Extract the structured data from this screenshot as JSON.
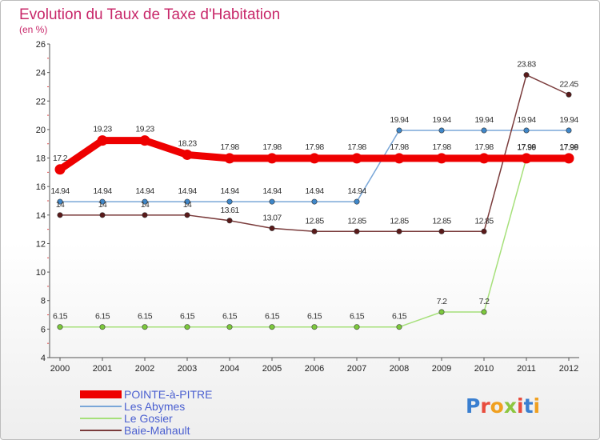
{
  "title": "Evolution du Taux de Taxe d'Habitation",
  "subtitle": "(en %)",
  "logo": {
    "text": "Proxiti",
    "letters": [
      {
        "ch": "P",
        "color": "#3a7fd0"
      },
      {
        "ch": "r",
        "color": "#e84c3d"
      },
      {
        "ch": "o",
        "color": "#f0a020"
      },
      {
        "ch": "x",
        "color": "#8cc63f"
      },
      {
        "ch": "i",
        "color": "#e84c3d"
      },
      {
        "ch": "t",
        "color": "#3a7fd0"
      },
      {
        "ch": "i",
        "color": "#f0a020"
      }
    ]
  },
  "chart_data": {
    "type": "line",
    "title": "Evolution du Taux de Taxe d'Habitation",
    "ylabel": "(en %)",
    "xlabel": "",
    "ylim": [
      4,
      26
    ],
    "yticks": [
      4,
      6,
      8,
      10,
      12,
      14,
      16,
      18,
      20,
      22,
      24,
      26
    ],
    "x": [
      "2000",
      "2001",
      "2002",
      "2003",
      "2004",
      "2005",
      "2006",
      "2007",
      "2008",
      "2009",
      "2010",
      "2011",
      "2012"
    ],
    "grid": "none",
    "legend_position": "bottom-left",
    "series": [
      {
        "name": "Les Abymes",
        "color": "#7aa7d8",
        "marker": "#3f87c9",
        "width": 1.5,
        "values": [
          14.94,
          14.94,
          14.94,
          14.94,
          14.94,
          14.94,
          14.94,
          14.94,
          19.94,
          19.94,
          19.94,
          19.94,
          19.94
        ],
        "labels": [
          "14.94",
          "14.94",
          "14.94",
          "14.94",
          "14.94",
          "14.94",
          "14.94",
          "14.94",
          "19.94",
          "19.94",
          "19.94",
          "19.94",
          "19.94"
        ]
      },
      {
        "name": "Baie-Mahault",
        "color": "#7a3b3b",
        "marker": "#5a1a1a",
        "width": 1.5,
        "values": [
          14,
          14,
          14,
          14,
          13.61,
          13.07,
          12.85,
          12.85,
          12.85,
          12.85,
          12.85,
          23.83,
          22.45
        ],
        "labels": [
          "14",
          "14",
          "14",
          "14",
          "13.61",
          "13.07",
          "12.85",
          "12.85",
          "12.85",
          "12.85",
          "12.85",
          "23.83",
          "22.45"
        ]
      },
      {
        "name": "Le Gosier",
        "color": "#a6e07a",
        "marker": "#7cc83c",
        "width": 1.5,
        "values": [
          6.15,
          6.15,
          6.15,
          6.15,
          6.15,
          6.15,
          6.15,
          6.15,
          6.15,
          7.2,
          7.2,
          17.99,
          17.99
        ],
        "labels": [
          "6.15",
          "6.15",
          "6.15",
          "6.15",
          "6.15",
          "6.15",
          "6.15",
          "6.15",
          "6.15",
          "7.2",
          "7.2",
          "17.99",
          "17.99"
        ]
      },
      {
        "name": "POINTE-à-PITRE",
        "color": "#ee0000",
        "marker": "#ee0000",
        "width": 9,
        "values": [
          17.2,
          19.23,
          19.23,
          18.23,
          17.98,
          17.98,
          17.98,
          17.98,
          17.98,
          17.98,
          17.98,
          17.98,
          17.98
        ],
        "labels": [
          "17.2",
          "19.23",
          "19.23",
          "18.23",
          "17.98",
          "17.98",
          "17.98",
          "17.98",
          "17.98",
          "17.98",
          "17.98",
          "17.98",
          "17.98"
        ]
      }
    ],
    "legend": [
      "POINTE-à-PITRE",
      "Les Abymes",
      "Le Gosier",
      "Baie-Mahault"
    ]
  }
}
